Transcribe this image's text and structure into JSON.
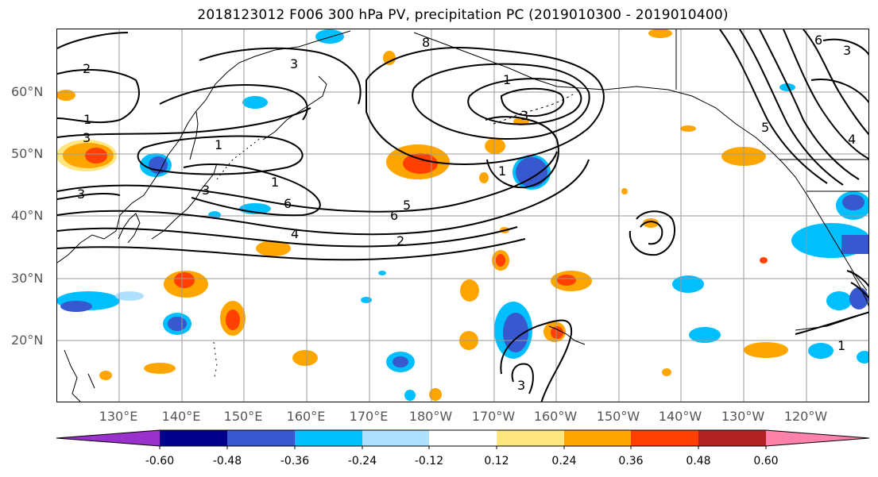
{
  "title": "2018123012 F006 300 hPa PV, precipitation PC (2019010300 - 2019010400)",
  "lat_labels": [
    "60°N",
    "50°N",
    "40°N",
    "30°N",
    "20°N"
  ],
  "lon_labels": [
    "130°E",
    "140°E",
    "150°E",
    "160°E",
    "170°E",
    "180°W",
    "170°W",
    "160°W",
    "150°W",
    "140°W",
    "130°W",
    "120°W"
  ],
  "colorbar": {
    "labels": [
      "-0.60",
      "-0.48",
      "-0.36",
      "-0.24",
      "-0.12",
      "0.12",
      "0.24",
      "0.36",
      "0.48",
      "0.60"
    ],
    "colors": [
      "#9932cc",
      "#00008b",
      "#3858cf",
      "#00bfff",
      "#b0e0ff",
      "#ffffff",
      "#ffe680",
      "#ffa500",
      "#ff4000",
      "#b22222",
      "#ff82ab"
    ]
  },
  "contour_labels": [
    "2",
    "3",
    "1",
    "1",
    "3",
    "1",
    "3",
    "3",
    "6",
    "5",
    "6",
    "4",
    "2",
    "1",
    "3",
    "1",
    "3",
    "5",
    "4",
    "8",
    "6",
    "1",
    "3"
  ],
  "colors": {
    "grid": "#9a9a9a",
    "coast": "#000000",
    "contour": "#000000"
  }
}
